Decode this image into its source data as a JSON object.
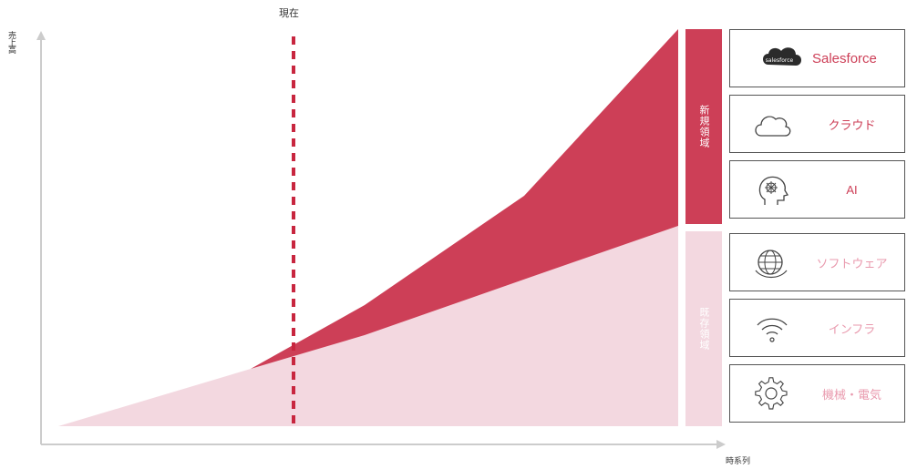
{
  "annotations": {
    "now_marker": "現在",
    "y_axis_label": "売上高",
    "x_axis_label": "時系列"
  },
  "bands": {
    "new": "新規領域",
    "existing": "既存領域"
  },
  "cards": [
    {
      "label": "Salesforce",
      "logo_text": "salesforce",
      "icon": "cloud-logo-icon",
      "group": "new"
    },
    {
      "label": "クラウド",
      "icon": "cloud-icon",
      "group": "new"
    },
    {
      "label": "AI",
      "icon": "brain-head-icon",
      "group": "new"
    },
    {
      "label": "ソフトウェア",
      "icon": "globe-icon",
      "group": "existing"
    },
    {
      "label": "インフラ",
      "icon": "wifi-icon",
      "group": "existing"
    },
    {
      "label": "機械・電気",
      "icon": "gear-icon",
      "group": "existing"
    }
  ],
  "colors": {
    "new_area": "#cd3f57",
    "existing_area": "#f3d8e0",
    "now_line": "#c8263f",
    "axis": "#cccccc"
  }
}
